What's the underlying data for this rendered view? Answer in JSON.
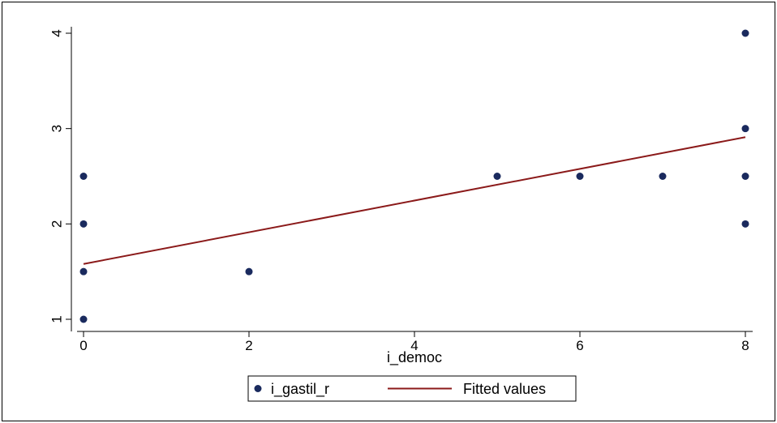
{
  "chart_data": {
    "type": "scatter",
    "xlabel": "i_democ",
    "ylabel": "",
    "xlim": [
      0,
      8
    ],
    "ylim": [
      1,
      4
    ],
    "xticks": [
      0,
      2,
      4,
      6,
      8
    ],
    "yticks": [
      1,
      2,
      3,
      4
    ],
    "grid": false,
    "legend": "bottom",
    "series": [
      {
        "name": "i_gastil_r",
        "type": "scatter",
        "color": "#1a2a5e",
        "points": [
          {
            "x": 0,
            "y": 2.5
          },
          {
            "x": 0,
            "y": 2
          },
          {
            "x": 0,
            "y": 1.5
          },
          {
            "x": 0,
            "y": 1
          },
          {
            "x": 2,
            "y": 1.5
          },
          {
            "x": 5,
            "y": 2.5
          },
          {
            "x": 6,
            "y": 2.5
          },
          {
            "x": 7,
            "y": 2.5
          },
          {
            "x": 8,
            "y": 4
          },
          {
            "x": 8,
            "y": 3
          },
          {
            "x": 8,
            "y": 2.5
          },
          {
            "x": 8,
            "y": 2
          }
        ]
      },
      {
        "name": "Fitted values",
        "type": "line",
        "color": "#8b1a1a",
        "points": [
          {
            "x": 0,
            "y": 1.58
          },
          {
            "x": 8,
            "y": 2.91
          }
        ]
      }
    ]
  }
}
